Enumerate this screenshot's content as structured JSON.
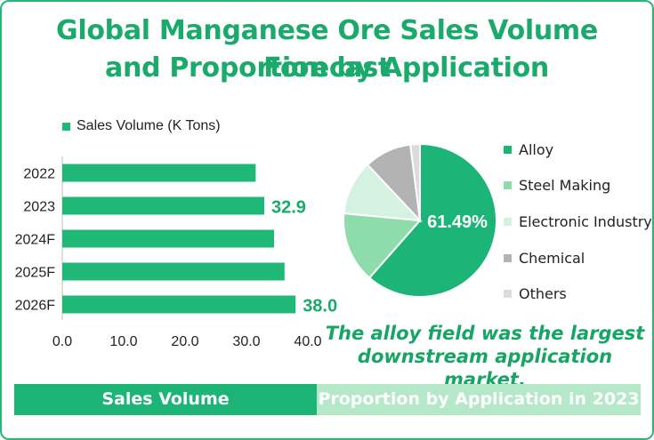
{
  "title_line1": "Global Manganese Ore Sales Volume Forecast",
  "title_line2": "and Proportion by Application",
  "colors": {
    "bar": "#20b877",
    "alloy": "#1db478",
    "steel": "#8fdcab",
    "electronic": "#d5f1e1",
    "chemical": "#b3b3b3",
    "others": "#dcdcdc",
    "band_left": "#1db478",
    "band_right": "#b5e8c8"
  },
  "chart_data": [
    {
      "type": "bar",
      "orientation": "horizontal",
      "legend": "Sales Volume (K Tons)",
      "legend_position": "top-left",
      "categories": [
        "2022",
        "2023",
        "2024F",
        "2025F",
        "2026F"
      ],
      "values": [
        31.5,
        32.9,
        34.5,
        36.2,
        38.0
      ],
      "data_labels": {
        "2023": "32.9",
        "2026F": "38.0"
      },
      "xlim": [
        0,
        40
      ],
      "x_ticks": [
        "0.0",
        "10.0",
        "20.0",
        "30.0",
        "40.0"
      ],
      "grid": false
    },
    {
      "type": "pie",
      "legend_position": "right",
      "slices": [
        {
          "label": "Alloy",
          "value": 61.49,
          "color": "#1db478"
        },
        {
          "label": "Steel Making",
          "value": 15.0,
          "color": "#8fdcab"
        },
        {
          "label": "Electronic Industry",
          "value": 11.5,
          "color": "#d5f1e1"
        },
        {
          "label": "Chemical",
          "value": 10.0,
          "color": "#b3b3b3"
        },
        {
          "label": "Others",
          "value": 2.01,
          "color": "#dcdcdc"
        }
      ],
      "data_label": "61.49%"
    }
  ],
  "note_line1": "The alloy field was the largest",
  "note_line2": "downstream application market.",
  "band_left_label": "Sales Volume",
  "band_right_label": "Proportion by Application in 2023"
}
